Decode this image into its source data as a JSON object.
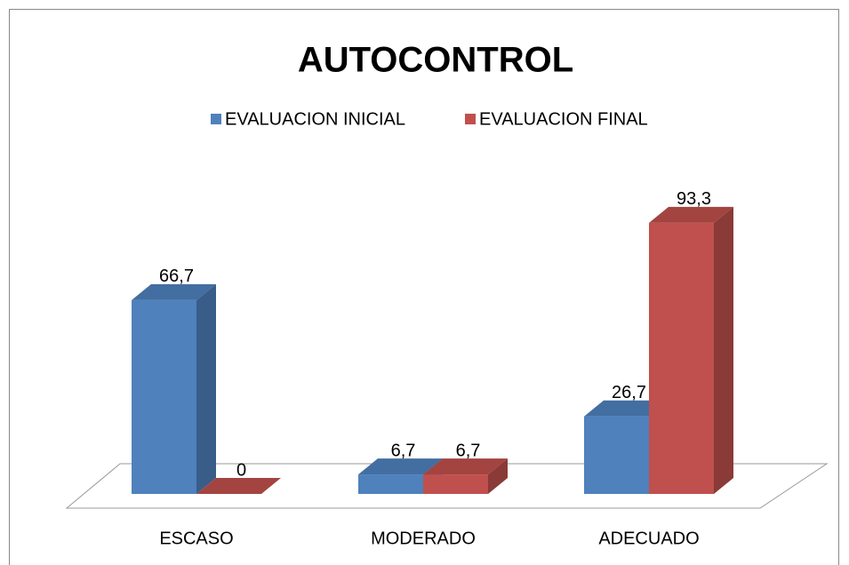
{
  "chart_data": {
    "type": "bar3d",
    "title": "AUTOCONTROL",
    "categories": [
      "ESCASO",
      "MODERADO",
      "ADECUADO"
    ],
    "series": [
      {
        "name": "EVALUACION INICIAL",
        "color": "#4f81bd",
        "values": [
          66.7,
          6.7,
          26.7
        ],
        "value_labels": [
          "66,7",
          "6,7",
          "26,7"
        ]
      },
      {
        "name": "EVALUACION FINAL",
        "color": "#c0504d",
        "values": [
          0,
          6.7,
          93.3
        ],
        "value_labels": [
          "0",
          "6,7",
          "93,3"
        ]
      }
    ],
    "legend": "top"
  }
}
